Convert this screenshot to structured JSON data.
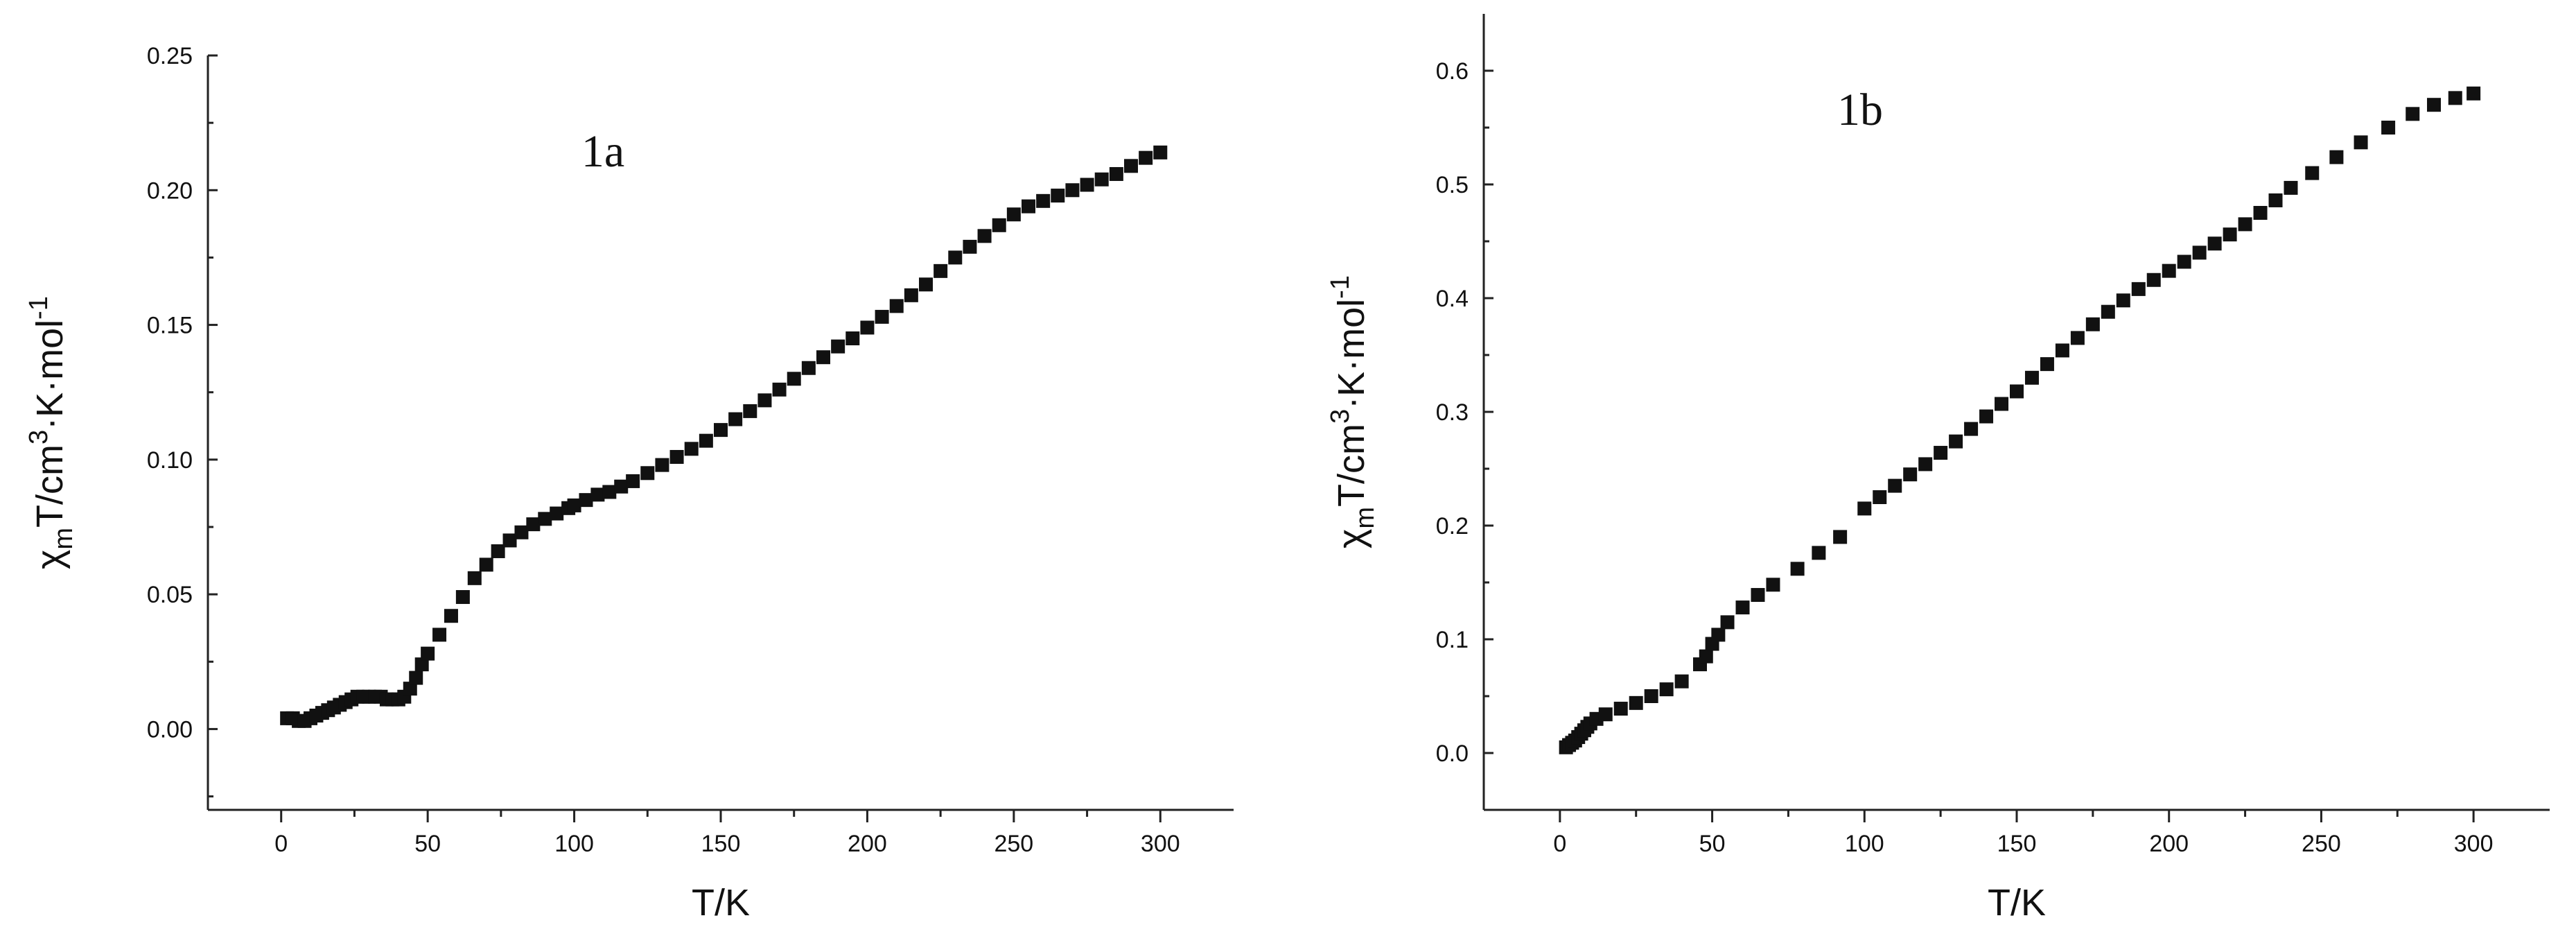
{
  "chart_data": [
    {
      "type": "scatter",
      "panel_label": "1a",
      "xlabel": "T/K",
      "ylabel_parts": [
        "χ",
        "m",
        "T/cm",
        "3",
        "·K·mol",
        "-1"
      ],
      "xlim": [
        -25,
        325
      ],
      "ylim": [
        -0.03,
        0.25
      ],
      "xticks": [
        0,
        50,
        100,
        150,
        200,
        250,
        300
      ],
      "yticks": [
        0.0,
        0.05,
        0.1,
        0.15,
        0.2,
        0.25
      ],
      "xtick_labels": [
        "0",
        "50",
        "100",
        "150",
        "200",
        "250",
        "300"
      ],
      "ytick_labels": [
        "0.00",
        "0.05",
        "0.10",
        "0.15",
        "0.20",
        "0.25"
      ],
      "grid": false,
      "series": [
        {
          "marker": "square",
          "color": "#111111",
          "x": [
            2,
            4,
            6,
            8,
            10,
            12,
            14,
            16,
            18,
            20,
            22,
            24,
            26,
            28,
            30,
            32,
            34,
            36,
            38,
            40,
            42,
            44,
            46,
            48,
            50,
            54,
            58,
            62,
            66,
            70,
            74,
            78,
            82,
            86,
            90,
            94,
            98,
            100,
            104,
            108,
            112,
            116,
            120,
            125,
            130,
            135,
            140,
            145,
            150,
            155,
            160,
            165,
            170,
            175,
            180,
            185,
            190,
            195,
            200,
            205,
            210,
            215,
            220,
            225,
            230,
            235,
            240,
            245,
            250,
            255,
            260,
            265,
            270,
            275,
            280,
            285,
            290,
            295,
            300
          ],
          "y": [
            0.004,
            0.004,
            0.003,
            0.003,
            0.004,
            0.005,
            0.006,
            0.007,
            0.008,
            0.009,
            0.01,
            0.011,
            0.012,
            0.012,
            0.012,
            0.012,
            0.012,
            0.011,
            0.011,
            0.011,
            0.012,
            0.015,
            0.019,
            0.024,
            0.028,
            0.035,
            0.042,
            0.049,
            0.056,
            0.061,
            0.066,
            0.07,
            0.073,
            0.076,
            0.078,
            0.08,
            0.082,
            0.083,
            0.085,
            0.087,
            0.088,
            0.09,
            0.092,
            0.095,
            0.098,
            0.101,
            0.104,
            0.107,
            0.111,
            0.115,
            0.118,
            0.122,
            0.126,
            0.13,
            0.134,
            0.138,
            0.142,
            0.145,
            0.149,
            0.153,
            0.157,
            0.161,
            0.165,
            0.17,
            0.175,
            0.179,
            0.183,
            0.187,
            0.191,
            0.194,
            0.196,
            0.198,
            0.2,
            0.202,
            0.204,
            0.206,
            0.209,
            0.212,
            0.214
          ]
        }
      ]
    },
    {
      "type": "scatter",
      "panel_label": "1b",
      "xlabel": "T/K",
      "ylabel_parts": [
        "χ",
        "m",
        "T/cm",
        "3",
        "·K·mol",
        "-1"
      ],
      "xlim": [
        -25,
        325
      ],
      "ylim": [
        -0.05,
        0.65
      ],
      "xticks": [
        0,
        50,
        100,
        150,
        200,
        250,
        300
      ],
      "yticks": [
        0.0,
        0.1,
        0.2,
        0.3,
        0.4,
        0.5,
        0.6
      ],
      "xtick_labels": [
        "0",
        "50",
        "100",
        "150",
        "200",
        "250",
        "300"
      ],
      "ytick_labels": [
        "0.0",
        "0.1",
        "0.2",
        "0.3",
        "0.4",
        "0.5",
        "0.6"
      ],
      "grid": false,
      "series": [
        {
          "marker": "square",
          "color": "#111111",
          "x": [
            2,
            3,
            4,
            5,
            6,
            7,
            8,
            9,
            10,
            12,
            15,
            20,
            25,
            30,
            35,
            40,
            46,
            48,
            50,
            52,
            55,
            60,
            65,
            70,
            78,
            85,
            92,
            100,
            105,
            110,
            115,
            120,
            125,
            130,
            135,
            140,
            145,
            150,
            155,
            160,
            165,
            170,
            175,
            180,
            185,
            190,
            195,
            200,
            205,
            210,
            215,
            220,
            225,
            230,
            235,
            240,
            247,
            255,
            263,
            272,
            280,
            287,
            294,
            300
          ],
          "y": [
            0.005,
            0.007,
            0.009,
            0.011,
            0.014,
            0.017,
            0.02,
            0.023,
            0.026,
            0.03,
            0.034,
            0.039,
            0.044,
            0.05,
            0.056,
            0.063,
            0.078,
            0.085,
            0.096,
            0.104,
            0.115,
            0.128,
            0.139,
            0.148,
            0.162,
            0.176,
            0.19,
            0.215,
            0.225,
            0.235,
            0.245,
            0.254,
            0.264,
            0.274,
            0.285,
            0.296,
            0.307,
            0.318,
            0.33,
            0.342,
            0.354,
            0.365,
            0.377,
            0.388,
            0.398,
            0.408,
            0.416,
            0.424,
            0.432,
            0.44,
            0.448,
            0.456,
            0.465,
            0.475,
            0.486,
            0.497,
            0.51,
            0.524,
            0.537,
            0.55,
            0.562,
            0.57,
            0.576,
            0.58
          ]
        }
      ]
    }
  ]
}
